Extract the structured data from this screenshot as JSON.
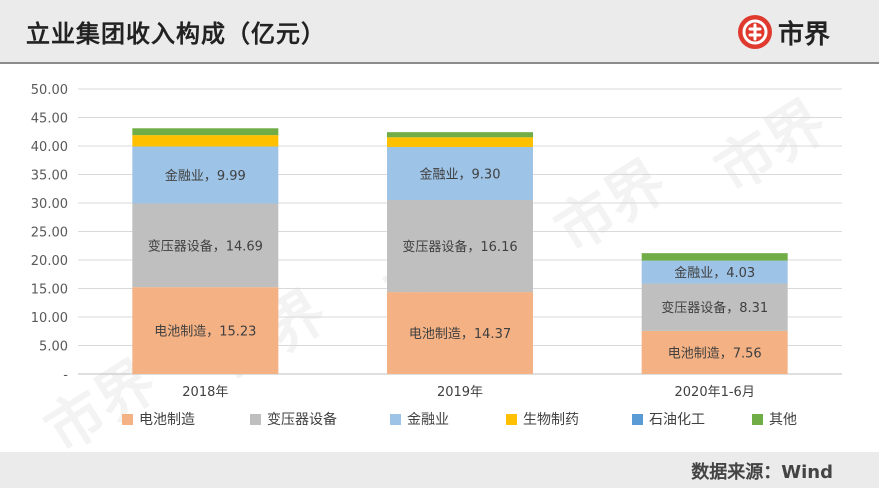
{
  "header": {
    "title": "立业集团收入构成（亿元）",
    "logo_text": "市界"
  },
  "footer": {
    "source": "数据来源：Wind"
  },
  "watermark": "市界",
  "chart_data": {
    "type": "bar",
    "stacked": true,
    "categories": [
      "2018年",
      "2019年",
      "2020年1-6月"
    ],
    "ylim": [
      0,
      50
    ],
    "yticks": [
      "-",
      "5.00",
      "10.00",
      "15.00",
      "20.00",
      "25.00",
      "30.00",
      "35.00",
      "40.00",
      "45.00",
      "50.00"
    ],
    "grid": true,
    "legend_position": "bottom",
    "series": [
      {
        "name": "电池制造",
        "color": "#f4b183",
        "values": [
          15.23,
          14.37,
          7.56
        ],
        "labels": [
          "电池制造，15.23",
          "电池制造，14.37",
          "电池制造，7.56"
        ]
      },
      {
        "name": "变压器设备",
        "color": "#bfbfbf",
        "values": [
          14.69,
          16.16,
          8.31
        ],
        "labels": [
          "变压器设备，14.69",
          "变压器设备，16.16",
          "变压器设备，8.31"
        ]
      },
      {
        "name": "金融业",
        "color": "#9dc3e6",
        "values": [
          9.99,
          9.3,
          4.03
        ],
        "labels": [
          "金融业，9.99",
          "金融业，9.30",
          "金融业，4.03"
        ]
      },
      {
        "name": "生物制药",
        "color": "#ffc000",
        "values": [
          2.0,
          1.7,
          0.0
        ],
        "labels": [
          "",
          "",
          ""
        ]
      },
      {
        "name": "石油化工",
        "color": "#5b9bd5",
        "values": [
          0.0,
          0.0,
          0.0
        ],
        "labels": [
          "",
          "",
          ""
        ]
      },
      {
        "name": "其他",
        "color": "#70ad47",
        "values": [
          1.2,
          0.9,
          1.3
        ],
        "labels": [
          "",
          "",
          ""
        ]
      }
    ]
  }
}
